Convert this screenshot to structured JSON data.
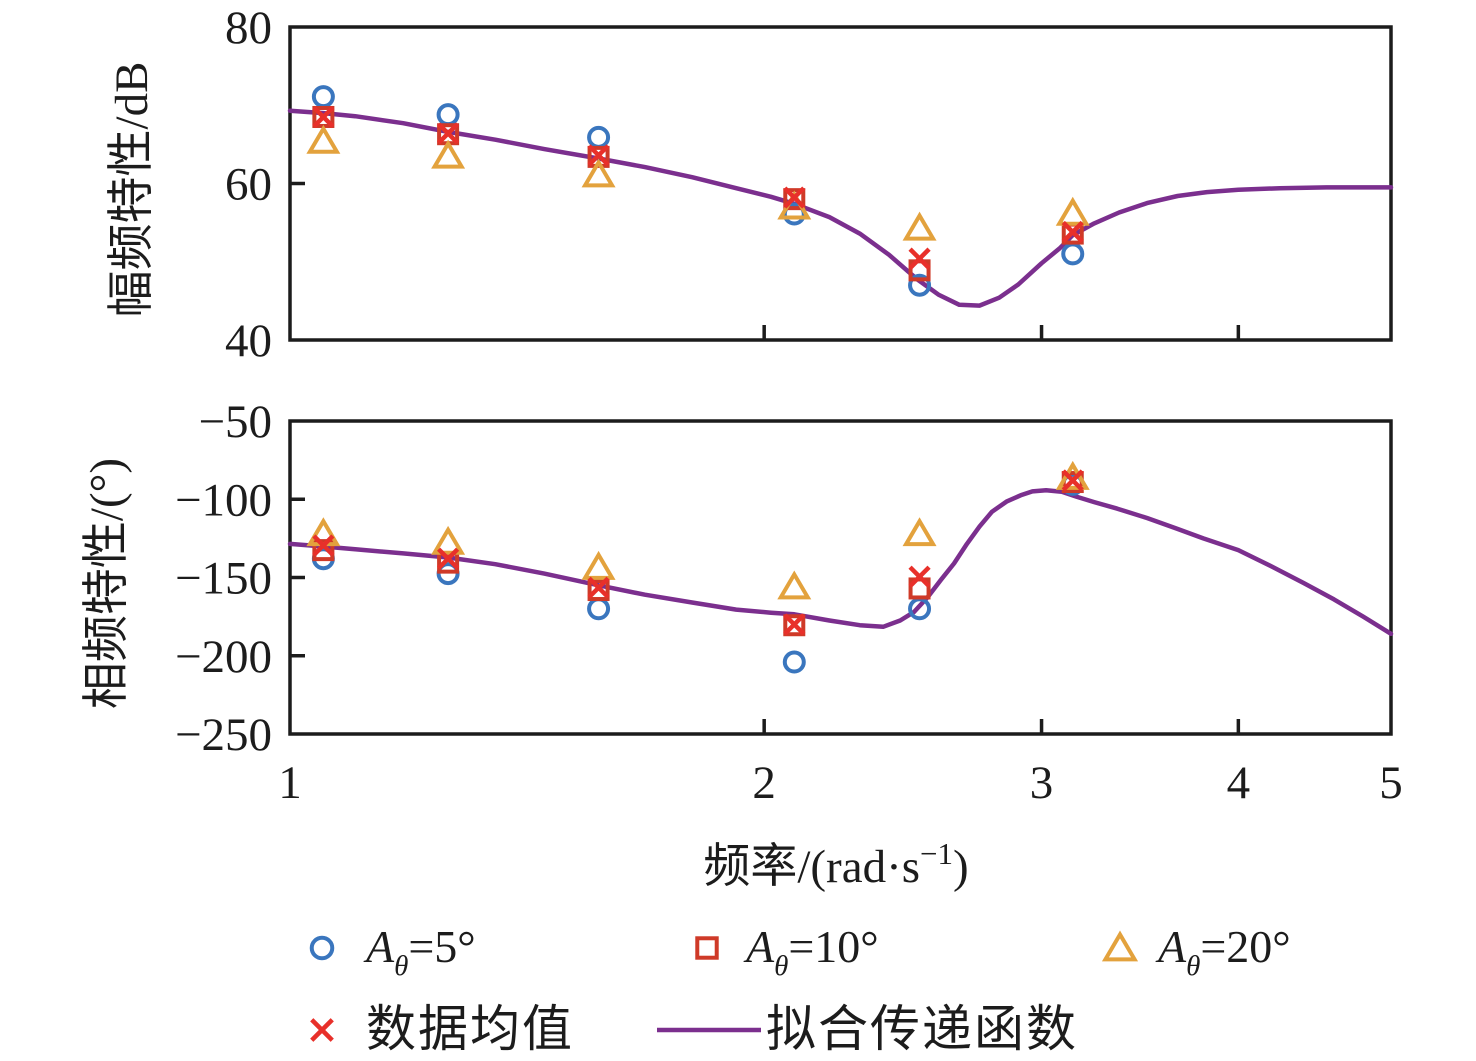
{
  "figure": {
    "background": "#ffffff",
    "frame_color": "#1c1c1c",
    "text_color": "#1c1c1c"
  },
  "xlabel": {
    "plain": "频率/(rad·s−1)",
    "main": "频率/(rad·s",
    "sup": "−1",
    "close": ")"
  },
  "chart_data": {
    "type": "scatter",
    "x_scale": "log",
    "x_range": [
      1,
      5
    ],
    "x_ticks": [
      1,
      2,
      3,
      4,
      5
    ],
    "x_tick_labels": [
      "1",
      "2",
      "3",
      "4",
      "5"
    ],
    "x_inner_ticks": [
      2,
      3,
      4
    ],
    "frequencies_rad_s": [
      1.05,
      1.26,
      1.57,
      2.09,
      2.51,
      3.14
    ],
    "subplots": [
      {
        "id": "magnitude",
        "ylabel": "幅频特性/dB",
        "y_range": [
          40,
          80
        ],
        "y_ticks": [
          80,
          60,
          40
        ],
        "y_tick_labels": [
          "80",
          "60",
          "40"
        ],
        "y_inner_ticks": [
          60
        ],
        "series": [
          {
            "name": "Aθ=5°",
            "marker": "circle",
            "color": "#3a76be",
            "values": [
              71.1,
              68.8,
              65.9,
              56.1,
              47.0,
              51.0
            ]
          },
          {
            "name": "Aθ=10°",
            "marker": "square",
            "color": "#cf3a28",
            "values": [
              68.5,
              66.3,
              63.4,
              58.0,
              48.9,
              53.6
            ]
          },
          {
            "name": "Aθ=20°",
            "marker": "triangle",
            "color": "#e3a23d",
            "values": [
              65.4,
              63.5,
              61.1,
              57.0,
              54.3,
              56.2
            ]
          },
          {
            "name": "数据均值",
            "marker": "x",
            "color": "#e8302a",
            "values": [
              68.5,
              66.4,
              63.6,
              58.2,
              50.4,
              53.8
            ]
          }
        ],
        "fit_curve": {
          "name": "拟合传递函数",
          "color": "#7b2f8e",
          "points": [
            [
              1.0,
              69.3
            ],
            [
              1.05,
              69.0
            ],
            [
              1.1,
              68.6
            ],
            [
              1.18,
              67.7
            ],
            [
              1.26,
              66.6
            ],
            [
              1.35,
              65.6
            ],
            [
              1.45,
              64.4
            ],
            [
              1.57,
              63.2
            ],
            [
              1.68,
              62.1
            ],
            [
              1.8,
              60.8
            ],
            [
              1.92,
              59.4
            ],
            [
              2.02,
              58.3
            ],
            [
              2.09,
              57.4
            ],
            [
              2.2,
              55.7
            ],
            [
              2.3,
              53.6
            ],
            [
              2.4,
              50.9
            ],
            [
              2.5,
              47.8
            ],
            [
              2.58,
              45.8
            ],
            [
              2.66,
              44.5
            ],
            [
              2.74,
              44.4
            ],
            [
              2.82,
              45.4
            ],
            [
              2.9,
              47.1
            ],
            [
              3.0,
              49.8
            ],
            [
              3.08,
              51.7
            ],
            [
              3.14,
              53.4
            ],
            [
              3.24,
              54.9
            ],
            [
              3.36,
              56.3
            ],
            [
              3.5,
              57.5
            ],
            [
              3.66,
              58.4
            ],
            [
              3.82,
              58.9
            ],
            [
              4.0,
              59.2
            ],
            [
              4.25,
              59.4
            ],
            [
              4.55,
              59.5
            ],
            [
              5.0,
              59.5
            ]
          ]
        }
      },
      {
        "id": "phase",
        "ylabel": "相频特性/(°)",
        "y_range": [
          -250,
          -50
        ],
        "y_ticks": [
          -50,
          -100,
          -150,
          -200,
          -250
        ],
        "y_tick_labels": [
          "−50",
          "−100",
          "−150",
          "−200",
          "−250"
        ],
        "y_inner_ticks": [
          -100,
          -150,
          -200
        ],
        "series": [
          {
            "name": "Aθ=5°",
            "marker": "circle",
            "color": "#3a76be",
            "values": [
              -138.0,
              -147.5,
              -170.0,
              -204.0,
              -170.0,
              -90.5
            ]
          },
          {
            "name": "Aθ=10°",
            "marker": "square",
            "color": "#cf3a28",
            "values": [
              -132.5,
              -140.5,
              -158.0,
              -180.5,
              -157.0,
              -89.0
            ]
          },
          {
            "name": "Aθ=20°",
            "marker": "triangle",
            "color": "#e3a23d",
            "values": [
              -122.0,
              -127.5,
              -143.5,
              -156.0,
              -122.0,
              -86.0
            ]
          },
          {
            "name": "数据均值",
            "marker": "x",
            "color": "#e8302a",
            "values": [
              -129.5,
              -138.0,
              -156.5,
              -180.0,
              -149.5,
              -88.0
            ]
          }
        ],
        "fit_curve": {
          "name": "拟合传递函数",
          "color": "#7b2f8e",
          "points": [
            [
              1.0,
              -128.5
            ],
            [
              1.05,
              -130.2
            ],
            [
              1.1,
              -132.0
            ],
            [
              1.18,
              -134.6
            ],
            [
              1.26,
              -137.2
            ],
            [
              1.35,
              -141.5
            ],
            [
              1.45,
              -147.5
            ],
            [
              1.57,
              -155.0
            ],
            [
              1.68,
              -161.0
            ],
            [
              1.8,
              -166.0
            ],
            [
              1.92,
              -170.5
            ],
            [
              2.02,
              -172.5
            ],
            [
              2.09,
              -173.5
            ],
            [
              2.2,
              -177.5
            ],
            [
              2.3,
              -180.5
            ],
            [
              2.38,
              -181.5
            ],
            [
              2.44,
              -177.5
            ],
            [
              2.49,
              -172.0
            ],
            [
              2.54,
              -162.5
            ],
            [
              2.59,
              -151.5
            ],
            [
              2.64,
              -141.0
            ],
            [
              2.69,
              -128.5
            ],
            [
              2.74,
              -117.5
            ],
            [
              2.79,
              -108.0
            ],
            [
              2.85,
              -101.5
            ],
            [
              2.91,
              -97.5
            ],
            [
              2.96,
              -95.0
            ],
            [
              3.02,
              -94.2
            ],
            [
              3.09,
              -95.2
            ],
            [
              3.16,
              -98.5
            ],
            [
              3.24,
              -101.8
            ],
            [
              3.35,
              -106.0
            ],
            [
              3.5,
              -112.0
            ],
            [
              3.65,
              -118.5
            ],
            [
              3.8,
              -125.0
            ],
            [
              4.0,
              -132.5
            ],
            [
              4.2,
              -143.0
            ],
            [
              4.4,
              -153.5
            ],
            [
              4.6,
              -164.0
            ],
            [
              4.8,
              -175.0
            ],
            [
              5.0,
              -186.0
            ]
          ]
        }
      }
    ]
  },
  "legend": {
    "row1": [
      {
        "marker": "circle",
        "color": "#3a76be",
        "label": {
          "var": "A",
          "sub": "θ",
          "rest": "=5°"
        },
        "plain": "Aθ=5°"
      },
      {
        "marker": "square",
        "color": "#cf3a28",
        "label": {
          "var": "A",
          "sub": "θ",
          "rest": "=10°"
        },
        "plain": "Aθ=10°"
      },
      {
        "marker": "triangle",
        "color": "#e3a23d",
        "label": {
          "var": "A",
          "sub": "θ",
          "rest": "=20°"
        },
        "plain": "Aθ=20°"
      }
    ],
    "row2": [
      {
        "marker": "x",
        "color": "#e8302a",
        "text": "数据均值"
      },
      {
        "marker": "line",
        "color": "#7b2f8e",
        "text": "拟合传递函数"
      }
    ]
  }
}
